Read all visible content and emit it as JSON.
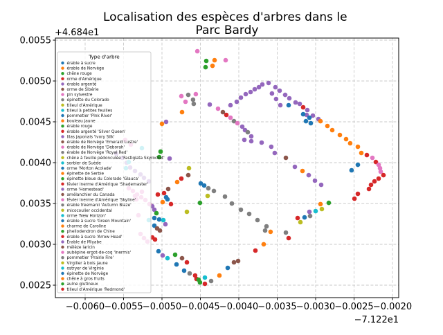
{
  "figure": {
    "title_line1": "Localisation des espèces d'arbres dans le",
    "title_line2": "Parc Bardy",
    "background": "#ffffff"
  },
  "axes": {
    "y_offset_label": "+4.684e1",
    "x_offset_label": "−7.122e1",
    "x_tick_labels": [
      "−0.0060",
      "−0.0055",
      "−0.0050",
      "−0.0045",
      "−0.0040",
      "−0.0035",
      "−0.0030",
      "−0.0025",
      "−0.0020"
    ],
    "y_tick_labels": [
      "0.0055",
      "0.0050",
      "0.0045",
      "0.0040",
      "0.0035",
      "0.0030",
      "0.0025"
    ],
    "grid": true
  },
  "palette": {
    "b": "#1f77b4",
    "o": "#ff7f0e",
    "g": "#2ca02c",
    "r": "#d62728",
    "p": "#9467bd",
    "br": "#8c564b",
    "pk": "#e377c2",
    "gy": "#7f7f7f",
    "ol": "#bcbd22",
    "cy": "#17becf"
  },
  "legend": {
    "title": "Type d'arbre",
    "position": "upper left"
  },
  "chart_data": {
    "type": "scatter",
    "title": "Localisation des espèces d'arbres dans le Parc Bardy",
    "xlabel": "",
    "ylabel": "",
    "x_offset": -71.22,
    "y_offset": 46.84,
    "xlim": [
      -0.0063873,
      -0.0019189
    ],
    "ylim": [
      0.0023475,
      0.0055254
    ],
    "x_tick_values": [
      -0.006,
      -0.0055,
      -0.005,
      -0.0045,
      -0.004,
      -0.0035,
      -0.003,
      -0.0025,
      -0.002
    ],
    "y_tick_values": [
      0.0055,
      0.005,
      0.0045,
      0.004,
      0.0035,
      0.003,
      0.0025
    ],
    "grid": true,
    "legend_title": "Type d'arbre",
    "species": [
      {
        "label": "érable à sucre",
        "color": "#1f77b4"
      },
      {
        "label": "érable de Norvège",
        "color": "#ff7f0e"
      },
      {
        "label": "chêne rouge",
        "color": "#2ca02c"
      },
      {
        "label": "orme d'Amérique",
        "color": "#d62728"
      },
      {
        "label": "érable argenté",
        "color": "#9467bd"
      },
      {
        "label": "orme de Sibérie",
        "color": "#8c564b"
      },
      {
        "label": "pin sylvestre",
        "color": "#e377c2"
      },
      {
        "label": "épinette du Colorado",
        "color": "#7f7f7f"
      },
      {
        "label": "tilleul d'Amérique",
        "color": "#bcbd22"
      },
      {
        "label": "tilleul à petites feuilles",
        "color": "#17becf"
      },
      {
        "label": "pommetier 'Pink River'",
        "color": "#1f77b4"
      },
      {
        "label": "bouleau jaune",
        "color": "#ff7f0e"
      },
      {
        "label": "érable rouge",
        "color": "#2ca02c"
      },
      {
        "label": "érable argenté 'Silver Queen'",
        "color": "#d62728"
      },
      {
        "label": "lilas japonais 'Ivory Silk'",
        "color": "#9467bd"
      },
      {
        "label": "érable de Norvège 'Emerald Lustre'",
        "color": "#8c564b"
      },
      {
        "label": "érable de Norvège 'Deborah'",
        "color": "#e377c2"
      },
      {
        "label": "érable de Norvège 'Royal Red'",
        "color": "#7f7f7f"
      },
      {
        "label": "chêne à feuille pédonculée 'Fastigiata Skyrocket'",
        "color": "#bcbd22"
      },
      {
        "label": "sorbier de Suède",
        "color": "#17becf"
      },
      {
        "label": "orme 'Morton Acolade'",
        "color": "#1f77b4"
      },
      {
        "label": "épinette de Serbie",
        "color": "#ff7f0e"
      },
      {
        "label": "épinette bleue du Colorado 'Glauca'",
        "color": "#2ca02c"
      },
      {
        "label": "févier inerme d'Amérique 'Shademaster'",
        "color": "#d62728"
      },
      {
        "label": "orme 'Homestead'",
        "color": "#9467bd"
      },
      {
        "label": "amélanchier du Canada",
        "color": "#8c564b"
      },
      {
        "label": "févier inerme d'Amérique 'Skyline'",
        "color": "#e377c2"
      },
      {
        "label": "érable freemanii 'Autumn Blaze'",
        "color": "#7f7f7f"
      },
      {
        "label": "micocoulier occidental",
        "color": "#bcbd22"
      },
      {
        "label": "orme 'New Horizon'",
        "color": "#17becf"
      },
      {
        "label": "érable à sucre 'Green Mountain'",
        "color": "#1f77b4"
      },
      {
        "label": "charme de Caroline",
        "color": "#ff7f0e"
      },
      {
        "label": "phellodendron de Chine",
        "color": "#2ca02c"
      },
      {
        "label": "érable à sucre 'Arrow Head'",
        "color": "#d62728"
      },
      {
        "label": "Érable de Miyabe",
        "color": "#9467bd"
      },
      {
        "label": "mélèze laricin",
        "color": "#8c564b"
      },
      {
        "label": "aubépine ergot-de-coq 'Inermis'",
        "color": "#e377c2"
      },
      {
        "label": "pommetier 'Prairie Fire'",
        "color": "#7f7f7f"
      },
      {
        "label": "Virgilier à bois jaune",
        "color": "#bcbd22"
      },
      {
        "label": "ostryer de Virginie",
        "color": "#17becf"
      },
      {
        "label": "épinette de Norvège",
        "color": "#1f77b4"
      },
      {
        "label": "chêne à gros fruits",
        "color": "#ff7f0e"
      },
      {
        "label": "aulne glutineux",
        "color": "#2ca02c"
      },
      {
        "label": "tilleul d'Amérique 'Redmond'",
        "color": "#d62728"
      }
    ],
    "points": [
      [
        -0.00454,
        0.005364,
        "pk"
      ],
      [
        -0.004423,
        0.005246,
        "g"
      ],
      [
        -0.004432,
        0.005169,
        "g"
      ],
      [
        -0.004315,
        0.005254,
        "o"
      ],
      [
        -0.004342,
        0.005186,
        "o"
      ],
      [
        -0.004171,
        0.005254,
        "pk"
      ],
      [
        -0.004748,
        0.004814,
        "pk"
      ],
      [
        -0.004658,
        0.00483,
        "gy"
      ],
      [
        -0.004559,
        0.004839,
        "pk"
      ],
      [
        -0.004595,
        0.004771,
        "gy"
      ],
      [
        -0.004694,
        0.004746,
        "pk"
      ],
      [
        -0.004586,
        0.00472,
        "gy"
      ],
      [
        -0.004739,
        0.004619,
        "o"
      ],
      [
        -0.005,
        0.004475,
        "o"
      ],
      [
        -0.004946,
        0.0045,
        "p"
      ],
      [
        -0.004378,
        0.004712,
        "p"
      ],
      [
        -0.00427,
        0.004661,
        "pk"
      ],
      [
        -0.004207,
        0.004619,
        "br"
      ],
      [
        -0.004162,
        0.004585,
        "r"
      ],
      [
        -0.004108,
        0.004551,
        "pk"
      ],
      [
        -0.004063,
        0.004508,
        "gy"
      ],
      [
        -0.004018,
        0.004483,
        "pk"
      ],
      [
        -0.003955,
        0.004441,
        "p"
      ],
      [
        -0.003919,
        0.004398,
        "p"
      ],
      [
        -0.003883,
        0.004373,
        "gy"
      ],
      [
        -0.003838,
        0.004322,
        "p"
      ],
      [
        -0.003928,
        0.00428,
        "p"
      ],
      [
        -0.003838,
        0.004263,
        "p"
      ],
      [
        -0.003703,
        0.004246,
        "p"
      ],
      [
        -0.003577,
        0.004195,
        "p"
      ],
      [
        -0.003532,
        0.004119,
        "p"
      ],
      [
        -0.003387,
        0.004059,
        "br"
      ],
      [
        -0.00327,
        0.003949,
        "p"
      ],
      [
        -0.003171,
        0.003898,
        "o"
      ],
      [
        -0.00309,
        0.003847,
        "p"
      ],
      [
        -0.003009,
        0.00378,
        "p"
      ],
      [
        -0.002928,
        0.003729,
        "p"
      ],
      [
        -0.004108,
        0.004703,
        "p"
      ],
      [
        -0.004027,
        0.004746,
        "p"
      ],
      [
        -0.003973,
        0.004797,
        "p"
      ],
      [
        -0.00391,
        0.004839,
        "p"
      ],
      [
        -0.003847,
        0.004864,
        "p"
      ],
      [
        -0.003793,
        0.004898,
        "p"
      ],
      [
        -0.003739,
        0.004924,
        "p"
      ],
      [
        -0.003694,
        0.004958,
        "p"
      ],
      [
        -0.003613,
        0.004975,
        "p"
      ],
      [
        -0.003523,
        0.004924,
        "p"
      ],
      [
        -0.003468,
        0.004881,
        "p"
      ],
      [
        -0.003396,
        0.00483,
        "p"
      ],
      [
        -0.003342,
        0.004788,
        "p"
      ],
      [
        -0.003261,
        0.004737,
        "p"
      ],
      [
        -0.003207,
        0.00472,
        "p"
      ],
      [
        -0.003568,
        0.004847,
        "p"
      ],
      [
        -0.003514,
        0.00478,
        "p"
      ],
      [
        -0.003459,
        0.004703,
        "p"
      ],
      [
        -0.003351,
        0.004703,
        "b"
      ],
      [
        -0.003162,
        0.004678,
        "r"
      ],
      [
        -0.003108,
        0.004644,
        "p"
      ],
      [
        -0.003117,
        0.004585,
        "p"
      ],
      [
        -0.003036,
        0.004576,
        "p"
      ],
      [
        -0.002964,
        0.004534,
        "p"
      ],
      [
        -0.003162,
        0.004593,
        "b"
      ],
      [
        -0.003081,
        0.004551,
        "b"
      ],
      [
        -0.003126,
        0.004508,
        "b"
      ],
      [
        -0.003063,
        0.004483,
        "b"
      ],
      [
        -0.002937,
        0.004508,
        "o"
      ],
      [
        -0.002847,
        0.004449,
        "o"
      ],
      [
        -0.002784,
        0.004398,
        "o"
      ],
      [
        -0.002685,
        0.004339,
        "o"
      ],
      [
        -0.002604,
        0.004288,
        "o"
      ],
      [
        -0.00255,
        0.004237,
        "o"
      ],
      [
        -0.00245,
        0.004195,
        "o"
      ],
      [
        -0.002405,
        0.004119,
        "o"
      ],
      [
        -0.002333,
        0.004093,
        "r"
      ],
      [
        -0.002261,
        0.004059,
        "pk"
      ],
      [
        -0.002216,
        0.004008,
        "r"
      ],
      [
        -0.00218,
        0.003974,
        "pk"
      ],
      [
        -0.002162,
        0.003932,
        "pk"
      ],
      [
        -0.002153,
        0.00389,
        "pk"
      ],
      [
        -0.002117,
        0.003847,
        "r"
      ],
      [
        -0.00218,
        0.003805,
        "r"
      ],
      [
        -0.002234,
        0.003771,
        "r"
      ],
      [
        -0.002279,
        0.003729,
        "r"
      ],
      [
        -0.002306,
        0.003678,
        "r"
      ],
      [
        -0.00245,
        0.003619,
        "r"
      ],
      [
        -0.002495,
        0.003559,
        "r"
      ],
      [
        -0.00245,
        0.003974,
        "b"
      ],
      [
        -0.002532,
        0.003907,
        "b"
      ],
      [
        -0.003234,
        0.003322,
        "r"
      ],
      [
        -0.003198,
        0.003271,
        "ol"
      ],
      [
        -0.003144,
        0.00333,
        "b"
      ],
      [
        -0.003072,
        0.003347,
        "gy"
      ],
      [
        -0.003081,
        0.003398,
        "p"
      ],
      [
        -0.003,
        0.003407,
        "cy"
      ],
      [
        -0.002937,
        0.003492,
        "o"
      ],
      [
        -0.002919,
        0.003432,
        "ol"
      ],
      [
        -0.002829,
        0.003508,
        "g"
      ],
      [
        -0.004495,
        0.003746,
        "b"
      ],
      [
        -0.00445,
        0.00372,
        "b"
      ],
      [
        -0.004396,
        0.003686,
        "gy"
      ],
      [
        -0.004324,
        0.003653,
        "gy"
      ],
      [
        -0.004405,
        0.003593,
        "ol"
      ],
      [
        -0.004505,
        0.003508,
        "g"
      ],
      [
        -0.00418,
        0.003585,
        "gy"
      ],
      [
        -0.00409,
        0.0035,
        "gy"
      ],
      [
        -0.003973,
        0.003424,
        "gy"
      ],
      [
        -0.003865,
        0.003373,
        "gy"
      ],
      [
        -0.003757,
        0.003297,
        "gy"
      ],
      [
        -0.00364,
        0.00322,
        "gy"
      ],
      [
        -0.003658,
        0.003169,
        "gy"
      ],
      [
        -0.003586,
        0.003153,
        "o"
      ],
      [
        -0.003387,
        0.003144,
        "gy"
      ],
      [
        -0.003351,
        0.003076,
        "r"
      ],
      [
        -0.005018,
        0.004136,
        "g"
      ],
      [
        -0.005036,
        0.004068,
        "g"
      ],
      [
        -0.004901,
        0.004051,
        "p"
      ],
      [
        -0.004649,
        0.003932,
        "ol"
      ],
      [
        -0.004658,
        0.003847,
        "br"
      ],
      [
        -0.004748,
        0.003805,
        "r"
      ],
      [
        -0.004802,
        0.003763,
        "o"
      ],
      [
        -0.004919,
        0.003678,
        "br"
      ],
      [
        -0.004973,
        0.003627,
        "r"
      ],
      [
        -0.005054,
        0.00361,
        "r"
      ],
      [
        -0.004946,
        0.003576,
        "b"
      ],
      [
        -0.004928,
        0.003551,
        "b"
      ],
      [
        -0.004991,
        0.003517,
        "o"
      ],
      [
        -0.004883,
        0.003492,
        "r"
      ],
      [
        -0.004676,
        0.003398,
        "ol"
      ],
      [
        -0.005126,
        0.003466,
        "p"
      ],
      [
        -0.005099,
        0.003424,
        "p"
      ],
      [
        -0.005072,
        0.003381,
        "g"
      ],
      [
        -0.005099,
        0.003322,
        "b"
      ],
      [
        -0.005036,
        0.003305,
        "b"
      ],
      [
        -0.004982,
        0.003297,
        "cy"
      ],
      [
        -0.004955,
        0.003246,
        "p"
      ],
      [
        -0.005099,
        0.003229,
        "b"
      ],
      [
        -0.005063,
        0.003195,
        "br"
      ],
      [
        -0.005027,
        0.003169,
        "br"
      ],
      [
        -0.005126,
        0.003085,
        "r"
      ],
      [
        -0.00509,
        0.003059,
        "r"
      ],
      [
        -0.005045,
        0.002915,
        "b"
      ],
      [
        -0.004991,
        0.002864,
        "p"
      ],
      [
        -0.004928,
        0.00283,
        "cy"
      ],
      [
        -0.004829,
        0.002873,
        "g"
      ],
      [
        -0.004739,
        0.00283,
        "br"
      ],
      [
        -0.004811,
        0.002754,
        "b"
      ],
      [
        -0.004676,
        0.00278,
        "r"
      ],
      [
        -0.004712,
        0.002678,
        "b"
      ],
      [
        -0.00464,
        0.002644,
        "gy"
      ],
      [
        -0.004568,
        0.002619,
        "r"
      ],
      [
        -0.00455,
        0.002576,
        "r"
      ],
      [
        -0.004523,
        0.002568,
        "g"
      ],
      [
        -0.004505,
        0.002534,
        "g"
      ],
      [
        -0.004441,
        0.002517,
        "r"
      ],
      [
        -0.004441,
        0.002593,
        "cy"
      ],
      [
        -0.00436,
        0.002551,
        "gy"
      ],
      [
        -0.004252,
        0.002619,
        "o"
      ],
      [
        -0.004144,
        0.002712,
        "b"
      ],
      [
        -0.004063,
        0.00278,
        "br"
      ],
      [
        -0.004009,
        0.002797,
        "br"
      ],
      [
        -0.003784,
        0.002924,
        "r"
      ],
      [
        -0.003676,
        0.003001,
        "o"
      ],
      [
        -0.005595,
        0.00411,
        "p"
      ],
      [
        -0.005514,
        0.004059,
        "p"
      ],
      [
        -0.005459,
        0.004,
        "p"
      ],
      [
        -0.005414,
        0.003941,
        "p"
      ],
      [
        -0.005351,
        0.003898,
        "p"
      ],
      [
        -0.005279,
        0.003856,
        "p"
      ],
      [
        -0.005234,
        0.003814,
        "p"
      ],
      [
        -0.005171,
        0.003771,
        "p"
      ],
      [
        -0.005432,
        0.003686,
        "pk"
      ],
      [
        -0.005378,
        0.003653,
        "pk"
      ],
      [
        -0.005324,
        0.00361,
        "pk"
      ],
      [
        -0.00527,
        0.003576,
        "pk"
      ],
      [
        -0.005216,
        0.003542,
        "pk"
      ],
      [
        -0.005162,
        0.003492,
        "pk"
      ],
      [
        -0.005478,
        0.00428,
        "pk"
      ],
      [
        -0.005405,
        0.00422,
        "pk"
      ],
      [
        -0.005261,
        0.004178,
        "cy"
      ],
      [
        -0.005432,
        0.004008,
        "cy"
      ],
      [
        -0.005469,
        0.003932,
        "cy"
      ],
      [
        -0.005333,
        0.003551,
        "pk"
      ],
      [
        -0.005306,
        0.003356,
        "pk"
      ],
      [
        -0.005171,
        0.003297,
        "cy"
      ],
      [
        -0.005279,
        0.003127,
        "pk"
      ],
      [
        -0.005234,
        0.003076,
        "pk"
      ],
      [
        -0.005189,
        0.003034,
        "pk"
      ],
      [
        -0.005261,
        0.003644,
        "pk"
      ],
      [
        -0.005351,
        0.003593,
        "pk"
      ]
    ]
  }
}
